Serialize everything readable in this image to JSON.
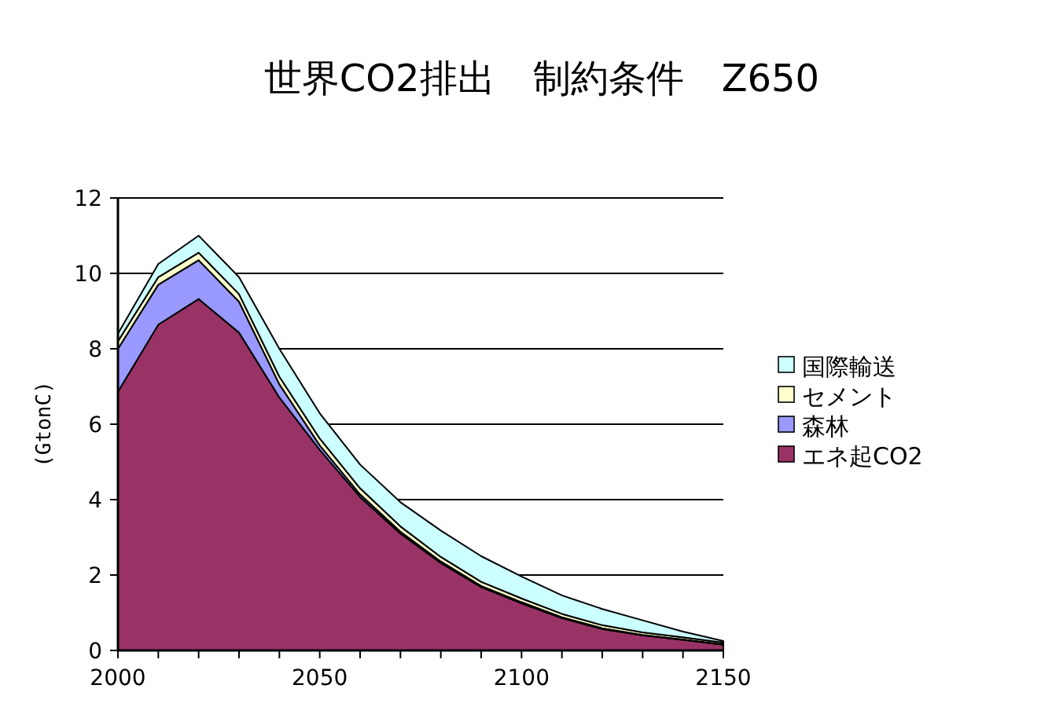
{
  "chart_data": {
    "type": "area",
    "stacked": true,
    "title": "世界CO2排出　制約条件　Z650",
    "ylabel": "(GtonC)",
    "x": [
      2000,
      2010,
      2020,
      2030,
      2040,
      2050,
      2060,
      2070,
      2080,
      2090,
      2100,
      2110,
      2120,
      2130,
      2140,
      2150
    ],
    "series": [
      {
        "name": "エネ起CO2",
        "color": "#993366",
        "values": [
          6.86,
          8.64,
          9.32,
          8.43,
          6.71,
          5.32,
          4.07,
          3.1,
          2.32,
          1.68,
          1.25,
          0.86,
          0.57,
          0.4,
          0.28,
          0.15
        ]
      },
      {
        "name": "森林",
        "color": "#9999ff",
        "values": [
          1.14,
          1.06,
          1.03,
          0.82,
          0.35,
          0.12,
          0.07,
          0.05,
          0.04,
          0.03,
          0.03,
          0.02,
          0.02,
          0.01,
          0.01,
          0.01
        ]
      },
      {
        "name": "セメント",
        "color": "#ffffcc",
        "values": [
          0.2,
          0.2,
          0.2,
          0.2,
          0.2,
          0.18,
          0.16,
          0.14,
          0.12,
          0.11,
          0.1,
          0.09,
          0.08,
          0.07,
          0.06,
          0.05
        ]
      },
      {
        "name": "国際輸送",
        "color": "#ccffff",
        "values": [
          0.2,
          0.35,
          0.45,
          0.45,
          0.74,
          0.67,
          0.63,
          0.64,
          0.7,
          0.68,
          0.58,
          0.49,
          0.43,
          0.32,
          0.15,
          0.04
        ]
      }
    ],
    "xlim": [
      2000,
      2150
    ],
    "xticks": [
      2000,
      {
        "value": 2010,
        "label": null
      },
      {
        "value": 2020,
        "label": null
      },
      {
        "value": 2030,
        "label": null
      },
      {
        "value": 2040,
        "label": null
      },
      2050,
      {
        "value": 2060,
        "label": null
      },
      {
        "value": 2070,
        "label": null
      },
      {
        "value": 2080,
        "label": null
      },
      {
        "value": 2090,
        "label": null
      },
      2100,
      {
        "value": 2110,
        "label": null
      },
      {
        "value": 2120,
        "label": null
      },
      {
        "value": 2130,
        "label": null
      },
      {
        "value": 2140,
        "label": null
      },
      2150
    ],
    "ylim": [
      0,
      12
    ],
    "yticks": [
      0,
      2,
      4,
      6,
      8,
      10,
      12
    ],
    "grid": "y",
    "legend": "right"
  }
}
